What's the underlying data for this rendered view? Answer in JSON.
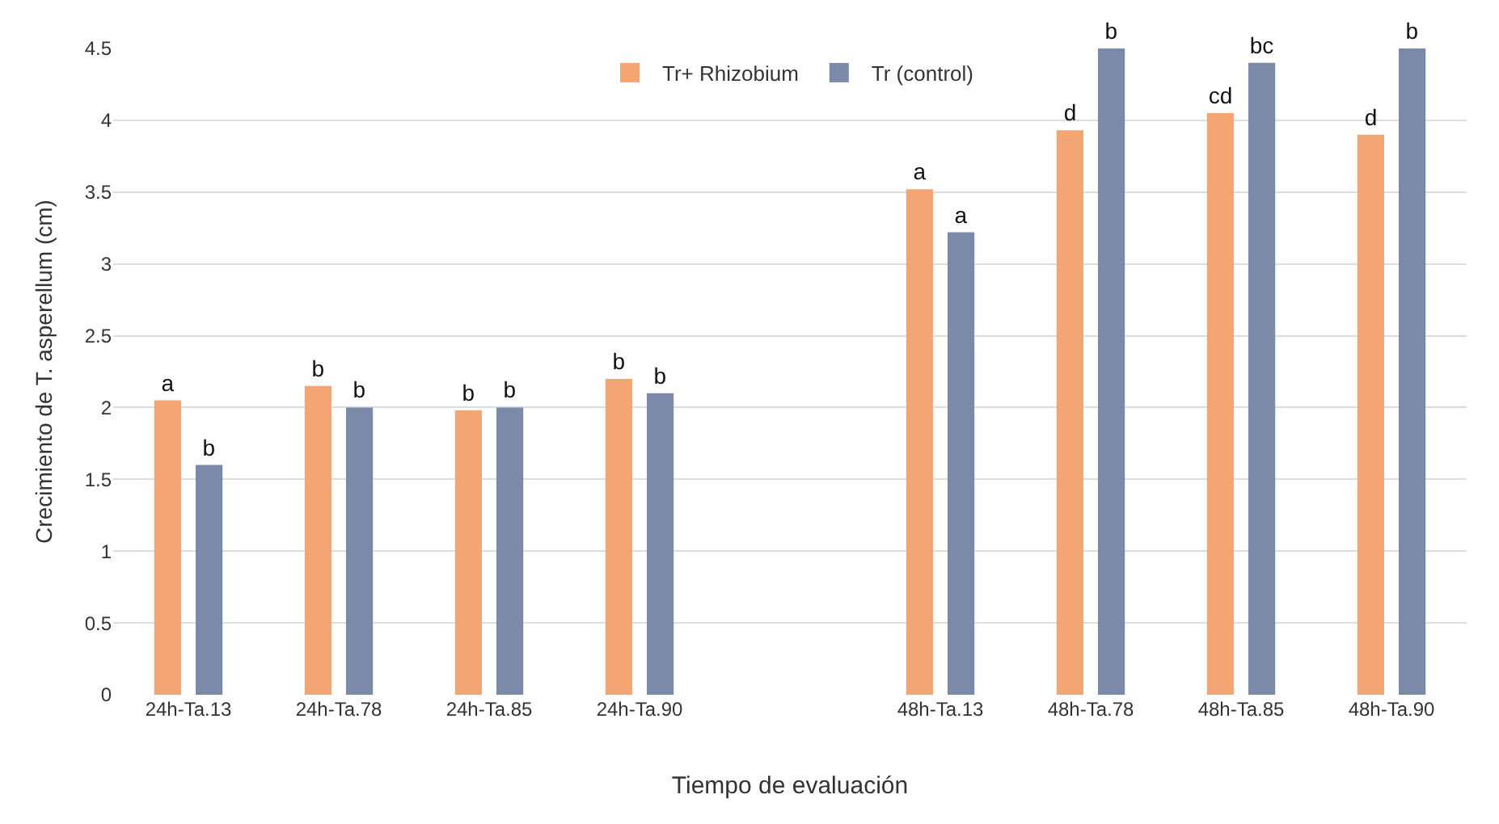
{
  "chart_data": {
    "type": "bar",
    "xlabel": "Tiempo de evaluación",
    "ylabel": "Crecimiento de T. asperellum (cm)",
    "categories": [
      "24h-Ta.13",
      "24h-Ta.78",
      "24h-Ta.85",
      "24h-Ta.90",
      null,
      "48h-Ta.13",
      "48h-Ta.78",
      "48h-Ta.85",
      "48h-Ta.90"
    ],
    "series": [
      {
        "name": "Tr+ Rhizobium",
        "color": "#f4a574",
        "values": [
          2.05,
          2.15,
          1.98,
          2.2,
          null,
          3.52,
          3.93,
          4.05,
          3.9
        ],
        "value_labels": [
          "a",
          "b",
          "b",
          "b",
          null,
          "a",
          "d",
          "cd",
          "d"
        ]
      },
      {
        "name": "Tr (control)",
        "color": "#7a8aa8",
        "values": [
          1.6,
          2.0,
          2.0,
          2.1,
          null,
          3.22,
          4.5,
          4.4,
          4.5
        ],
        "value_labels": [
          "b",
          "b",
          "b",
          "b",
          null,
          "a",
          "b",
          "bc",
          "b"
        ]
      }
    ],
    "ylim": [
      0,
      4.5
    ],
    "yticks": [
      0,
      0.5,
      1,
      1.5,
      2,
      2.5,
      3,
      3.5,
      4,
      4.5
    ],
    "grid": "y",
    "legend": "top"
  }
}
